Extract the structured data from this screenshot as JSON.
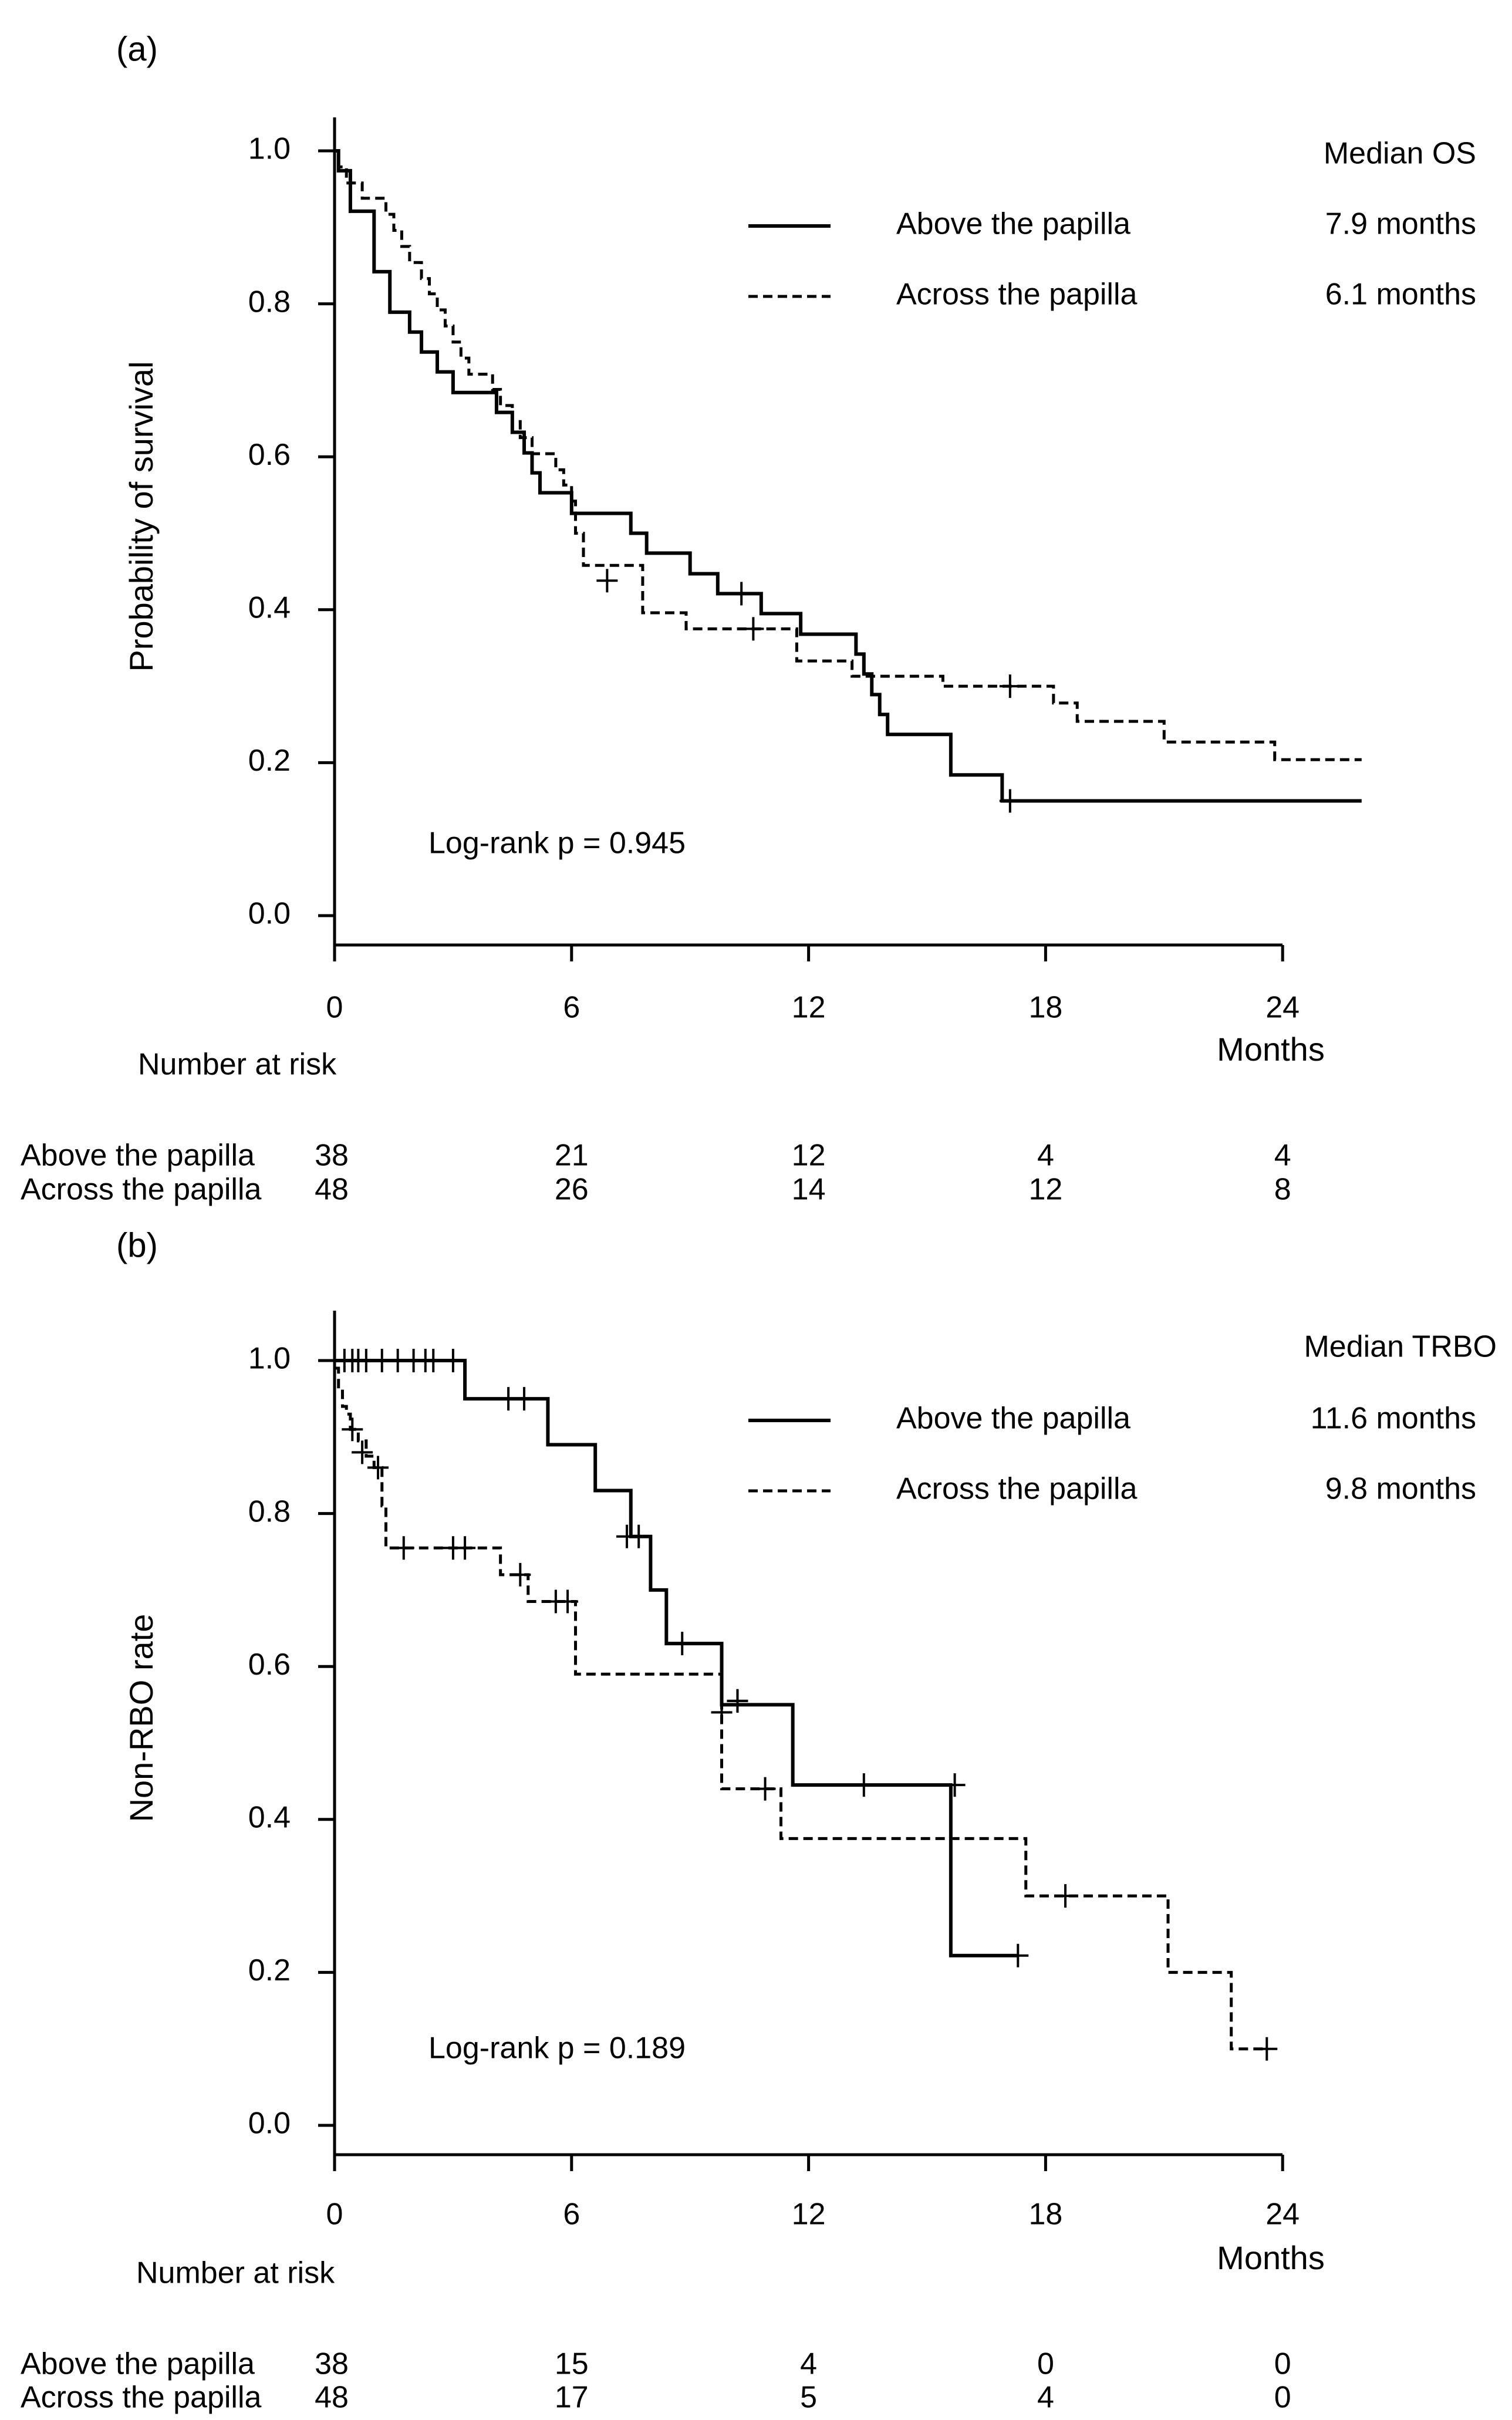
{
  "chart_data": [
    {
      "type": "line",
      "panel_label": "(a)",
      "ylabel": "Probability of survival",
      "xlabel": "Months",
      "xlim": [
        0,
        24
      ],
      "ylim": [
        0,
        1
      ],
      "xticks": [
        "0",
        "6",
        "12",
        "18",
        "24"
      ],
      "yticks": [
        "0.0",
        "0.2",
        "0.4",
        "0.6",
        "0.8",
        "1.0"
      ],
      "legend_header": "Median OS",
      "annotation": "Log-rank p = 0.945",
      "series": [
        {
          "name": "Above the papilla",
          "median": "7.9 months",
          "style": "solid",
          "steps": [
            [
              0,
              1.0
            ],
            [
              0.1,
              0.974
            ],
            [
              0.4,
              0.921
            ],
            [
              1.0,
              0.842
            ],
            [
              1.4,
              0.789
            ],
            [
              1.9,
              0.763
            ],
            [
              2.2,
              0.737
            ],
            [
              2.6,
              0.711
            ],
            [
              3.0,
              0.684
            ],
            [
              4.1,
              0.658
            ],
            [
              4.5,
              0.632
            ],
            [
              4.8,
              0.605
            ],
            [
              5.0,
              0.579
            ],
            [
              5.2,
              0.553
            ],
            [
              6.0,
              0.526
            ],
            [
              7.5,
              0.5
            ],
            [
              7.9,
              0.474
            ],
            [
              9.0,
              0.447
            ],
            [
              9.7,
              0.421
            ],
            [
              10.8,
              0.395
            ],
            [
              11.8,
              0.368
            ],
            [
              13.2,
              0.342
            ],
            [
              13.4,
              0.316
            ],
            [
              13.6,
              0.289
            ],
            [
              13.8,
              0.263
            ],
            [
              14.0,
              0.237
            ],
            [
              15.6,
              0.184
            ],
            [
              16.9,
              0.15
            ],
            [
              26.0,
              0.15
            ]
          ],
          "censored": [
            [
              10.3,
              0.421
            ],
            [
              17.1,
              0.15
            ]
          ],
          "end": 26.0
        },
        {
          "name": "Across the papilla",
          "median": "6.1 months",
          "style": "dashed",
          "steps": [
            [
              0,
              1.0
            ],
            [
              0.1,
              0.979
            ],
            [
              0.3,
              0.958
            ],
            [
              0.7,
              0.938
            ],
            [
              1.3,
              0.917
            ],
            [
              1.5,
              0.896
            ],
            [
              1.7,
              0.875
            ],
            [
              1.9,
              0.854
            ],
            [
              2.2,
              0.833
            ],
            [
              2.4,
              0.813
            ],
            [
              2.6,
              0.792
            ],
            [
              2.8,
              0.771
            ],
            [
              3.0,
              0.75
            ],
            [
              3.2,
              0.729
            ],
            [
              3.4,
              0.708
            ],
            [
              4.0,
              0.688
            ],
            [
              4.2,
              0.667
            ],
            [
              4.5,
              0.646
            ],
            [
              4.7,
              0.625
            ],
            [
              5.0,
              0.604
            ],
            [
              5.6,
              0.583
            ],
            [
              5.8,
              0.563
            ],
            [
              6.0,
              0.542
            ],
            [
              6.1,
              0.5
            ],
            [
              6.3,
              0.458
            ],
            [
              7.8,
              0.396
            ],
            [
              8.9,
              0.375
            ],
            [
              11.7,
              0.333
            ],
            [
              13.1,
              0.313
            ],
            [
              15.4,
              0.3
            ],
            [
              18.2,
              0.278
            ],
            [
              18.8,
              0.254
            ],
            [
              21.0,
              0.227
            ],
            [
              23.8,
              0.204
            ],
            [
              26.0,
              0.204
            ]
          ],
          "censored": [
            [
              6.9,
              0.438
            ],
            [
              10.6,
              0.375
            ],
            [
              17.1,
              0.3
            ]
          ],
          "end": 26.0
        }
      ],
      "risk_table": {
        "title": "Number at risk",
        "times": [
          0,
          6,
          12,
          18,
          24
        ],
        "rows": [
          {
            "label": "Above the papilla",
            "counts": [
              "38",
              "21",
              "12",
              "4",
              "4"
            ]
          },
          {
            "label": "Across the papilla",
            "counts": [
              "48",
              "26",
              "14",
              "12",
              "8"
            ]
          }
        ]
      }
    },
    {
      "type": "line",
      "panel_label": "(b)",
      "ylabel": "Non-RBO rate",
      "xlabel": "Months",
      "xlim": [
        0,
        24
      ],
      "ylim": [
        0,
        1
      ],
      "xticks": [
        "0",
        "6",
        "12",
        "18",
        "24"
      ],
      "yticks": [
        "0.0",
        "0.2",
        "0.4",
        "0.6",
        "0.8",
        "1.0"
      ],
      "legend_header": "Median TRBO",
      "annotation": "Log-rank p = 0.189",
      "series": [
        {
          "name": "Above the papilla",
          "median": "11.6 months",
          "style": "solid",
          "steps": [
            [
              0,
              1.0
            ],
            [
              3.3,
              0.95
            ],
            [
              5.4,
              0.89
            ],
            [
              6.6,
              0.83
            ],
            [
              7.5,
              0.77
            ],
            [
              8.0,
              0.7
            ],
            [
              8.4,
              0.63
            ],
            [
              9.8,
              0.55
            ],
            [
              11.6,
              0.445
            ],
            [
              15.6,
              0.222
            ],
            [
              17.3,
              0.222
            ]
          ],
          "censored": [
            [
              0.25,
              1.0
            ],
            [
              0.45,
              1.0
            ],
            [
              0.6,
              1.0
            ],
            [
              0.8,
              1.0
            ],
            [
              1.2,
              1.0
            ],
            [
              1.6,
              1.0
            ],
            [
              2.0,
              1.0
            ],
            [
              2.3,
              1.0
            ],
            [
              2.5,
              1.0
            ],
            [
              3.0,
              1.0
            ],
            [
              4.4,
              0.95
            ],
            [
              4.8,
              0.95
            ],
            [
              7.4,
              0.77
            ],
            [
              7.7,
              0.77
            ],
            [
              8.8,
              0.63
            ],
            [
              10.2,
              0.555
            ],
            [
              13.4,
              0.445
            ],
            [
              15.7,
              0.445
            ],
            [
              17.3,
              0.222
            ]
          ],
          "end": 17.3
        },
        {
          "name": "Across the papilla",
          "median": "9.8 months",
          "style": "dashed",
          "steps": [
            [
              0,
              0.99
            ],
            [
              0.1,
              0.96
            ],
            [
              0.2,
              0.94
            ],
            [
              0.3,
              0.93
            ],
            [
              0.4,
              0.91
            ],
            [
              0.6,
              0.895
            ],
            [
              0.8,
              0.875
            ],
            [
              1.0,
              0.86
            ],
            [
              1.2,
              0.81
            ],
            [
              1.3,
              0.755
            ],
            [
              4.2,
              0.72
            ],
            [
              4.9,
              0.685
            ],
            [
              6.1,
              0.59
            ],
            [
              9.8,
              0.44
            ],
            [
              11.3,
              0.375
            ],
            [
              17.5,
              0.3
            ],
            [
              21.1,
              0.2
            ],
            [
              22.7,
              0.1
            ],
            [
              23.6,
              0.1
            ]
          ],
          "censored": [
            [
              0.45,
              0.91
            ],
            [
              0.7,
              0.88
            ],
            [
              1.1,
              0.86
            ],
            [
              1.75,
              0.755
            ],
            [
              3.0,
              0.755
            ],
            [
              3.3,
              0.755
            ],
            [
              4.7,
              0.72
            ],
            [
              5.6,
              0.685
            ],
            [
              5.9,
              0.685
            ],
            [
              9.8,
              0.54
            ],
            [
              10.2,
              0.555
            ],
            [
              10.9,
              0.44
            ],
            [
              18.5,
              0.3
            ],
            [
              23.6,
              0.1
            ]
          ],
          "end": 23.6
        }
      ],
      "risk_table": {
        "title": "Number at risk",
        "times": [
          0,
          6,
          12,
          18,
          24
        ],
        "rows": [
          {
            "label": "Above the papilla",
            "counts": [
              "38",
              "15",
              "4",
              "0",
              "0"
            ]
          },
          {
            "label": "Across the papilla",
            "counts": [
              "48",
              "17",
              "5",
              "4",
              "0"
            ]
          }
        ]
      }
    }
  ]
}
